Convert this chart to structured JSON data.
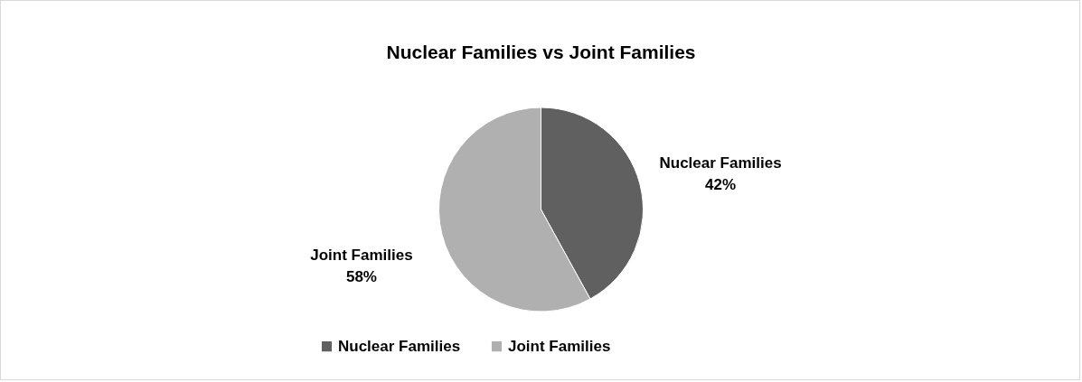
{
  "chart_data": {
    "type": "pie",
    "title": "Nuclear Families vs Joint Families",
    "categories": [
      "Nuclear Families",
      "Joint Families"
    ],
    "values": [
      42,
      58
    ],
    "colors": [
      "#606060",
      "#b0b0b0"
    ],
    "value_labels": [
      "42%",
      "58%"
    ],
    "legend": "bottom"
  }
}
